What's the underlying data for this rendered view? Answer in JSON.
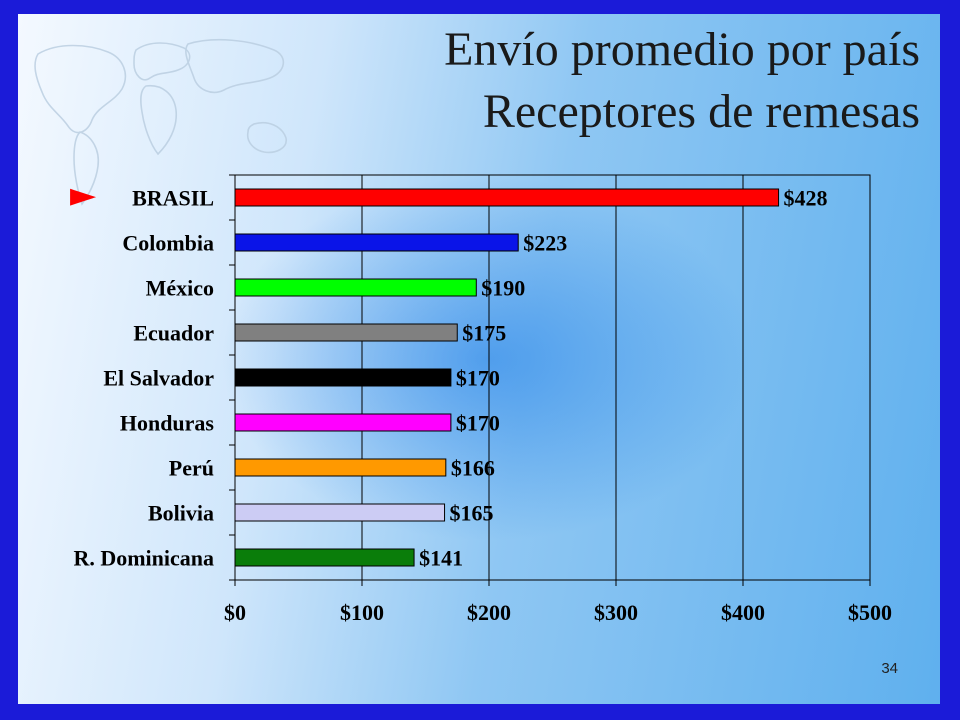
{
  "slide": {
    "title_line1": "Envío promedio por país",
    "title_line2": "Receptores de remesas",
    "page_number": "34",
    "highlight_marker": "►",
    "border_color": "#1b1bd8"
  },
  "chart_data": {
    "type": "bar",
    "orientation": "horizontal",
    "categories": [
      "BRASIL",
      "Colombia",
      "México",
      "Ecuador",
      "El Salvador",
      "Honduras",
      "Perú",
      "Bolivia",
      "R. Dominicana"
    ],
    "values": [
      428,
      223,
      190,
      175,
      170,
      170,
      166,
      165,
      141
    ],
    "data_labels": [
      "$428",
      "$223",
      "$190",
      "$175",
      "$170",
      "$170",
      "$166",
      "$165",
      "$141"
    ],
    "colors": [
      "#ff0000",
      "#0a14e8",
      "#00ff00",
      "#808080",
      "#000000",
      "#ff00ff",
      "#ff9900",
      "#ccccf4",
      "#0a7d0a"
    ],
    "xlim": [
      0,
      500
    ],
    "x_ticks": [
      0,
      100,
      200,
      300,
      400,
      500
    ],
    "x_tick_labels": [
      "$0",
      "$100",
      "$200",
      "$300",
      "$400",
      "$500"
    ],
    "grid": "vertical",
    "highlighted_category": "BRASIL",
    "title": "",
    "xlabel": "",
    "ylabel": ""
  }
}
